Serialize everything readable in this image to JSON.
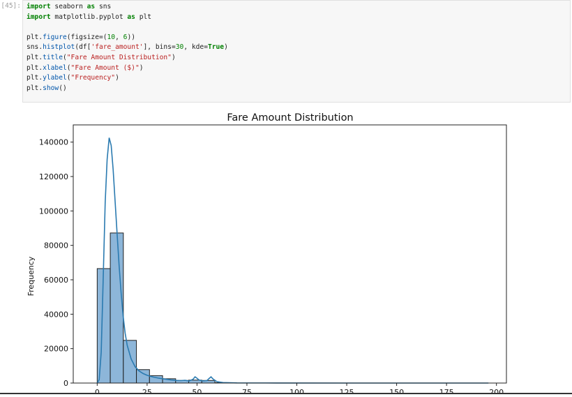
{
  "cell": {
    "prompt": "[45]:",
    "code_lines": [
      [
        {
          "t": "import",
          "c": "kw"
        },
        {
          "t": " seaborn ",
          "c": ""
        },
        {
          "t": "as",
          "c": "kw"
        },
        {
          "t": " sns",
          "c": ""
        }
      ],
      [
        {
          "t": "import",
          "c": "kw"
        },
        {
          "t": " matplotlib.pyplot ",
          "c": ""
        },
        {
          "t": "as",
          "c": "kw"
        },
        {
          "t": " plt",
          "c": ""
        }
      ],
      [],
      [
        {
          "t": "plt.",
          "c": ""
        },
        {
          "t": "figure",
          "c": "fn"
        },
        {
          "t": "(figsize=(",
          "c": ""
        },
        {
          "t": "10",
          "c": "nm"
        },
        {
          "t": ", ",
          "c": ""
        },
        {
          "t": "6",
          "c": "nm"
        },
        {
          "t": "))",
          "c": ""
        }
      ],
      [
        {
          "t": "sns.",
          "c": ""
        },
        {
          "t": "histplot",
          "c": "fn"
        },
        {
          "t": "(df[",
          "c": ""
        },
        {
          "t": "'fare_amount'",
          "c": "st"
        },
        {
          "t": "], bins=",
          "c": ""
        },
        {
          "t": "30",
          "c": "nm"
        },
        {
          "t": ", kde=",
          "c": ""
        },
        {
          "t": "True",
          "c": "kw"
        },
        {
          "t": ")",
          "c": ""
        }
      ],
      [
        {
          "t": "plt.",
          "c": ""
        },
        {
          "t": "title",
          "c": "fn"
        },
        {
          "t": "(",
          "c": ""
        },
        {
          "t": "\"Fare Amount Distribution\"",
          "c": "st"
        },
        {
          "t": ")",
          "c": ""
        }
      ],
      [
        {
          "t": "plt.",
          "c": ""
        },
        {
          "t": "xlabel",
          "c": "fn"
        },
        {
          "t": "(",
          "c": ""
        },
        {
          "t": "\"Fare Amount ($)\"",
          "c": "st"
        },
        {
          "t": ")",
          "c": ""
        }
      ],
      [
        {
          "t": "plt.",
          "c": ""
        },
        {
          "t": "ylabel",
          "c": "fn"
        },
        {
          "t": "(",
          "c": ""
        },
        {
          "t": "\"Frequency\"",
          "c": "st"
        },
        {
          "t": ")",
          "c": ""
        }
      ],
      [
        {
          "t": "plt.",
          "c": ""
        },
        {
          "t": "show",
          "c": "fn"
        },
        {
          "t": "()",
          "c": ""
        }
      ]
    ]
  },
  "chart_data": {
    "type": "bar",
    "title": "Fare Amount Distribution",
    "xlabel": "",
    "ylabel": "Frequency",
    "xlim": [
      -12,
      205
    ],
    "ylim": [
      0,
      150000
    ],
    "yticks": [
      0,
      20000,
      40000,
      60000,
      80000,
      100000,
      120000,
      140000
    ],
    "xticks": [
      0,
      25,
      50,
      75,
      100,
      125,
      150,
      175,
      200
    ],
    "bin_width": 6.55,
    "bins": [
      {
        "x0": 0.0,
        "count": 66500
      },
      {
        "x0": 6.55,
        "count": 87200
      },
      {
        "x0": 13.1,
        "count": 24800
      },
      {
        "x0": 19.65,
        "count": 7800
      },
      {
        "x0": 26.2,
        "count": 4300
      },
      {
        "x0": 32.75,
        "count": 2500
      },
      {
        "x0": 39.3,
        "count": 1500
      },
      {
        "x0": 45.85,
        "count": 1700
      },
      {
        "x0": 52.4,
        "count": 1500
      },
      {
        "x0": 58.95,
        "count": 200
      }
    ],
    "kde": [
      [
        0,
        0
      ],
      [
        1,
        2000
      ],
      [
        2,
        18000
      ],
      [
        3,
        60000
      ],
      [
        4,
        105000
      ],
      [
        5,
        130000
      ],
      [
        6,
        142500
      ],
      [
        7,
        138000
      ],
      [
        8,
        124000
      ],
      [
        9,
        105000
      ],
      [
        10,
        86000
      ],
      [
        11,
        68000
      ],
      [
        12,
        52000
      ],
      [
        13,
        39000
      ],
      [
        14,
        29000
      ],
      [
        15,
        22000
      ],
      [
        17,
        14000
      ],
      [
        19,
        9500
      ],
      [
        21,
        7000
      ],
      [
        23,
        5500
      ],
      [
        25,
        4500
      ],
      [
        28,
        3500
      ],
      [
        31,
        2800
      ],
      [
        34,
        2300
      ],
      [
        37,
        1800
      ],
      [
        40,
        1500
      ],
      [
        42,
        1400
      ],
      [
        44,
        1600
      ],
      [
        46,
        1200
      ],
      [
        48,
        2200
      ],
      [
        49,
        3600
      ],
      [
        50,
        2800
      ],
      [
        51,
        1800
      ],
      [
        53,
        1200
      ],
      [
        55,
        1400
      ],
      [
        56,
        2600
      ],
      [
        57,
        3600
      ],
      [
        58,
        2400
      ],
      [
        60,
        800
      ],
      [
        63,
        300
      ],
      [
        70,
        100
      ],
      [
        90,
        50
      ],
      [
        130,
        20
      ],
      [
        196,
        0
      ]
    ],
    "bar_fill": "#8db6d9",
    "bar_stroke": "#1f1f1f",
    "kde_color": "#2a7ab0"
  }
}
